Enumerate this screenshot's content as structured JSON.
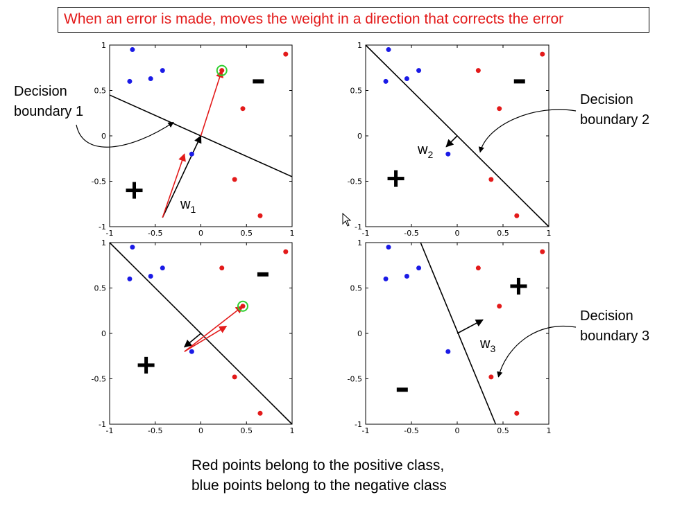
{
  "header": {
    "title": "When an error is made, moves the weight in a direction that corrects the error"
  },
  "caption": {
    "line1": "Red points belong to the positive class,",
    "line2": "blue points belong to the negative class"
  },
  "colors": {
    "positive": "#e31a1a",
    "negative": "#1a1ae6",
    "highlight": "#2fcf2f",
    "boundary": "#000000",
    "update_arrow": "#e31a1a"
  },
  "chart_data": [
    {
      "type": "scatter",
      "panel": "top-left",
      "xlim": [
        -1,
        1
      ],
      "ylim": [
        -1,
        1
      ],
      "xticks": [
        "-1",
        "-0.5",
        "0",
        "0.5",
        "1"
      ],
      "yticks": [
        "1",
        "0.5",
        "0",
        "-0.5",
        "-1"
      ],
      "points_negative": [
        [
          -0.75,
          0.95
        ],
        [
          -0.78,
          0.6
        ],
        [
          -0.55,
          0.63
        ],
        [
          -0.42,
          0.72
        ],
        [
          -0.1,
          -0.2
        ]
      ],
      "points_positive": [
        [
          0.23,
          0.72
        ],
        [
          0.46,
          0.3
        ],
        [
          0.37,
          -0.48
        ],
        [
          0.65,
          -0.88
        ],
        [
          0.93,
          0.9
        ]
      ],
      "highlighted_point": [
        0.23,
        0.72
      ],
      "boundary": [
        [
          -1,
          0.45
        ],
        [
          1,
          -0.45
        ]
      ],
      "arrows_black": [
        [
          [
            -0.42,
            -0.9
          ],
          [
            0.0,
            0.0
          ]
        ]
      ],
      "arrows_red": [
        [
          [
            -0.42,
            -0.9
          ],
          [
            -0.18,
            -0.2
          ]
        ],
        [
          [
            0.0,
            0.0
          ],
          [
            0.23,
            0.72
          ]
        ]
      ],
      "weight_label": "w",
      "weight_subscript": "1",
      "plus_sign": [
        -0.73,
        -0.6
      ],
      "minus_sign": [
        0.63,
        0.6
      ],
      "annotation": {
        "line1": "Decision",
        "line2": "boundary 1",
        "points_to": [
          -0.3,
          0.15
        ]
      }
    },
    {
      "type": "scatter",
      "panel": "top-right",
      "xlim": [
        -1,
        1
      ],
      "ylim": [
        -1,
        1
      ],
      "xticks": [
        "-1",
        "-0.5",
        "0",
        "0.5",
        "1"
      ],
      "yticks": [
        "1",
        "0.5",
        "0",
        "-0.5",
        "-1"
      ],
      "points_negative": [
        [
          -0.75,
          0.95
        ],
        [
          -0.78,
          0.6
        ],
        [
          -0.55,
          0.63
        ],
        [
          -0.42,
          0.72
        ],
        [
          -0.1,
          -0.2
        ]
      ],
      "points_positive": [
        [
          0.23,
          0.72
        ],
        [
          0.46,
          0.3
        ],
        [
          0.37,
          -0.48
        ],
        [
          0.65,
          -0.88
        ],
        [
          0.93,
          0.9
        ]
      ],
      "boundary": [
        [
          -1,
          1
        ],
        [
          1,
          -1
        ]
      ],
      "arrows_black": [
        [
          [
            0.0,
            0.0
          ],
          [
            -0.12,
            -0.12
          ]
        ]
      ],
      "arrows_red": [],
      "weight_label": "w",
      "weight_subscript": "2",
      "plus_sign": [
        -0.67,
        -0.47
      ],
      "minus_sign": [
        0.68,
        0.6
      ],
      "annotation": {
        "line1": "Decision",
        "line2": "boundary 2",
        "points_to": [
          0.25,
          -0.18
        ]
      }
    },
    {
      "type": "scatter",
      "panel": "bottom-left",
      "xlim": [
        -1,
        1
      ],
      "ylim": [
        -1,
        1
      ],
      "xticks": [
        "-1",
        "-0.5",
        "0",
        "0.5",
        "1"
      ],
      "yticks": [
        "1",
        "0.5",
        "0",
        "-0.5",
        "-1"
      ],
      "points_negative": [
        [
          -0.75,
          0.95
        ],
        [
          -0.78,
          0.6
        ],
        [
          -0.55,
          0.63
        ],
        [
          -0.42,
          0.72
        ],
        [
          -0.1,
          -0.2
        ]
      ],
      "points_positive": [
        [
          0.23,
          0.72
        ],
        [
          0.46,
          0.3
        ],
        [
          0.37,
          -0.48
        ],
        [
          0.65,
          -0.88
        ],
        [
          0.93,
          0.9
        ]
      ],
      "highlighted_point": [
        0.46,
        0.3
      ],
      "boundary": [
        [
          -1,
          1
        ],
        [
          1,
          -1
        ]
      ],
      "arrows_black": [
        [
          [
            0.0,
            0.0
          ],
          [
            -0.18,
            -0.15
          ]
        ]
      ],
      "arrows_red": [
        [
          [
            -0.18,
            -0.2
          ],
          [
            0.28,
            0.08
          ]
        ],
        [
          [
            -0.18,
            -0.2
          ],
          [
            0.46,
            0.3
          ]
        ]
      ],
      "plus_sign": [
        -0.6,
        -0.35
      ],
      "minus_sign": [
        0.68,
        0.65
      ]
    },
    {
      "type": "scatter",
      "panel": "bottom-right",
      "xlim": [
        -1,
        1
      ],
      "ylim": [
        -1,
        1
      ],
      "xticks": [
        "-1",
        "-0.5",
        "0",
        "0.5",
        "1"
      ],
      "yticks": [
        "1",
        "0.5",
        "0",
        "-0.5",
        "-1"
      ],
      "points_negative": [
        [
          -0.75,
          0.95
        ],
        [
          -0.78,
          0.6
        ],
        [
          -0.55,
          0.63
        ],
        [
          -0.42,
          0.72
        ],
        [
          -0.1,
          -0.2
        ]
      ],
      "points_positive": [
        [
          0.23,
          0.72
        ],
        [
          0.46,
          0.3
        ],
        [
          0.37,
          -0.48
        ],
        [
          0.65,
          -0.88
        ],
        [
          0.93,
          0.9
        ]
      ],
      "boundary": [
        [
          -0.4,
          1
        ],
        [
          0.42,
          -1
        ]
      ],
      "arrows_black": [
        [
          [
            0.0,
            0.0
          ],
          [
            0.28,
            0.15
          ]
        ]
      ],
      "arrows_red": [],
      "weight_label": "w",
      "weight_subscript": "3",
      "plus_sign": [
        0.67,
        0.52
      ],
      "minus_sign": [
        -0.6,
        -0.62
      ],
      "annotation": {
        "line1": "Decision",
        "line2": "boundary 3",
        "points_to": [
          0.45,
          -0.48
        ]
      }
    }
  ]
}
